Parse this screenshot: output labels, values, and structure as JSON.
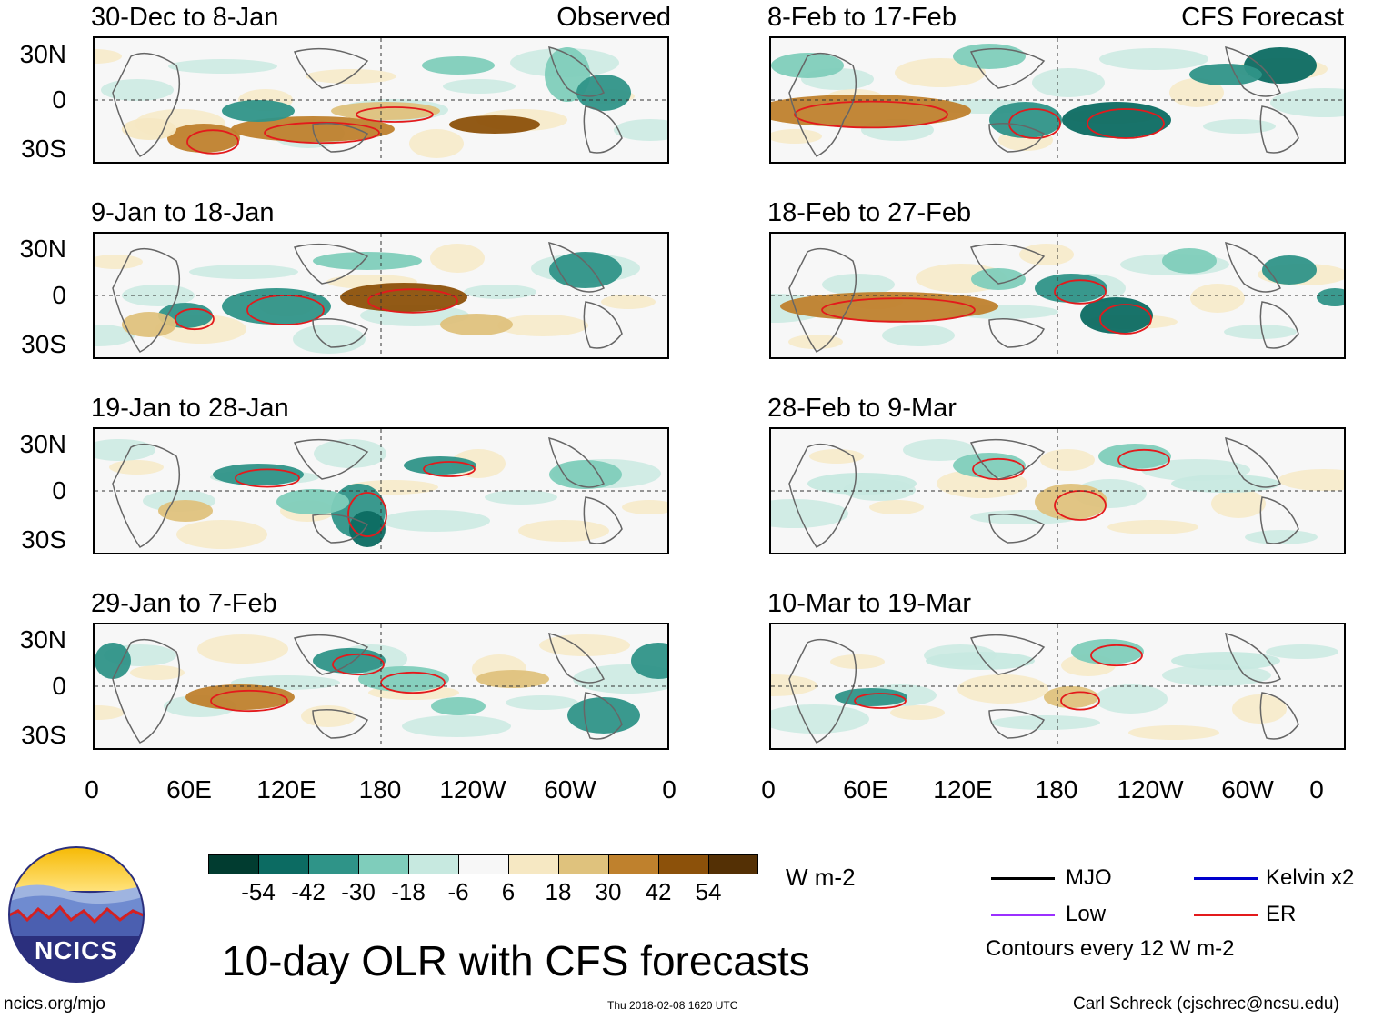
{
  "panels_left": [
    {
      "title": "30-Dec to 8-Jan",
      "tag": "Observed"
    },
    {
      "title": "9-Jan to 18-Jan",
      "tag": ""
    },
    {
      "title": "19-Jan to 28-Jan",
      "tag": ""
    },
    {
      "title": "29-Jan to 7-Feb",
      "tag": ""
    }
  ],
  "panels_right": [
    {
      "title": "8-Feb to 17-Feb",
      "tag": "CFS Forecast"
    },
    {
      "title": "18-Feb to 27-Feb",
      "tag": ""
    },
    {
      "title": "28-Feb to 9-Mar",
      "tag": ""
    },
    {
      "title": "10-Mar to 19-Mar",
      "tag": ""
    }
  ],
  "lat_labels": [
    "30N",
    "0",
    "30S"
  ],
  "lon_labels": [
    "0",
    "60E",
    "120E",
    "180",
    "120W",
    "60W",
    "0"
  ],
  "colorbar": {
    "units": "W m-2",
    "labels": [
      "-54",
      "-42",
      "-30",
      "-18",
      "-6",
      "6",
      "18",
      "30",
      "42",
      "54"
    ],
    "colors": [
      "#013c30",
      "#0c6b62",
      "#2f9488",
      "#7fcdbb",
      "#c7e9e0",
      "#f7f7f7",
      "#f6e8c3",
      "#dfc27d",
      "#bf812d",
      "#8c510a",
      "#543005"
    ]
  },
  "legend": {
    "items": [
      {
        "label": "MJO",
        "color": "#000000"
      },
      {
        "label": "Kelvin x2",
        "color": "#0000cc"
      },
      {
        "label": "Low",
        "color": "#9b30ff"
      },
      {
        "label": "ER",
        "color": "#e31a1c"
      }
    ],
    "note": "Contours every 12 W m-2"
  },
  "logo": {
    "text": "NCICS"
  },
  "main_title": "10-day OLR with CFS forecasts",
  "footer": {
    "url": "ncics.org/mjo",
    "timestamp": "Thu 2018-02-08 1620 UTC",
    "credit": "Carl Schreck (cjschrec@ncsu.edu)"
  },
  "chart_data": {
    "type": "heatmap",
    "title": "10-day OLR with CFS forecasts",
    "variable": "OLR anomaly",
    "units": "W m-2",
    "contour_interval": 12,
    "x_axis": {
      "labels": [
        "0",
        "60E",
        "120E",
        "180",
        "120W",
        "60W",
        "0"
      ],
      "range_deg": [
        0,
        360
      ]
    },
    "y_axis": {
      "labels": [
        "30N",
        "0",
        "30S"
      ],
      "range_deg": [
        -40,
        40
      ]
    },
    "color_levels": [
      -54,
      -42,
      -30,
      -18,
      -6,
      6,
      18,
      30,
      42,
      54
    ],
    "panels": [
      {
        "period": "30-Dec to 8-Jan",
        "source": "Observed"
      },
      {
        "period": "9-Jan to 18-Jan",
        "source": "Observed"
      },
      {
        "period": "19-Jan to 28-Jan",
        "source": "Observed"
      },
      {
        "period": "29-Jan to 7-Feb",
        "source": "Observed"
      },
      {
        "period": "8-Feb to 17-Feb",
        "source": "CFS Forecast"
      },
      {
        "period": "18-Feb to 27-Feb",
        "source": "CFS Forecast"
      },
      {
        "period": "28-Feb to 9-Mar",
        "source": "CFS Forecast"
      },
      {
        "period": "10-Mar to 19-Mar",
        "source": "CFS Forecast"
      }
    ]
  }
}
